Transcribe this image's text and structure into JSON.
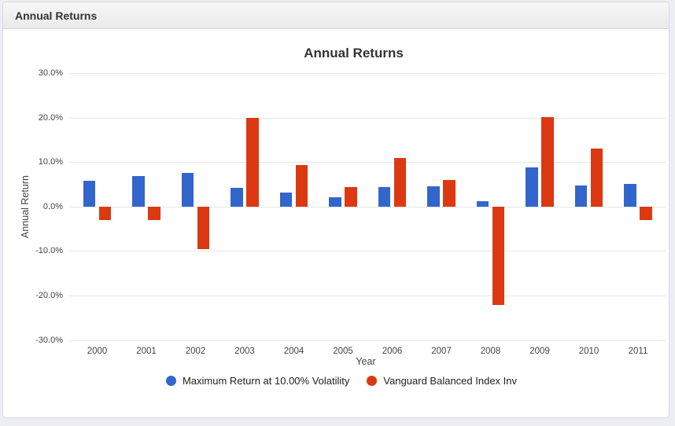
{
  "window": {
    "header_title": "Annual Returns"
  },
  "chart_data": {
    "type": "bar",
    "title": "Annual Returns",
    "xlabel": "Year",
    "ylabel": "Annual Return",
    "categories": [
      "2000",
      "2001",
      "2002",
      "2003",
      "2004",
      "2005",
      "2006",
      "2007",
      "2008",
      "2009",
      "2010",
      "2011"
    ],
    "series": [
      {
        "name": "Maximum Return at 10.00% Volatility",
        "color": "#3366cc",
        "values": [
          5.8,
          6.9,
          7.5,
          4.2,
          3.1,
          2.0,
          4.3,
          4.6,
          1.2,
          8.8,
          4.8,
          5.0
        ]
      },
      {
        "name": "Vanguard Balanced Index Inv",
        "color": "#dc3912",
        "values": [
          -3.1,
          -3.0,
          -9.6,
          19.9,
          9.3,
          4.4,
          10.9,
          5.9,
          -22.2,
          20.1,
          13.0,
          -3.1
        ]
      }
    ],
    "ylim": [
      -30,
      30
    ],
    "yticks": [
      30,
      20,
      10,
      0,
      -10,
      -20,
      -30
    ],
    "ytick_labels": [
      "30.0%",
      "20.0%",
      "10.0%",
      "0.0%",
      "-10.0%",
      "-20.0%",
      "-30.0%"
    ],
    "grid": true,
    "legend_position": "bottom"
  },
  "colors": {
    "page_background": "#edeef4",
    "panel_background": "#ffffff",
    "panel_border": "#d9d9d9",
    "gridline": "#e6e6e6",
    "axis_text": "#444444",
    "series_blue": "#3366cc",
    "series_red": "#dc3912"
  }
}
